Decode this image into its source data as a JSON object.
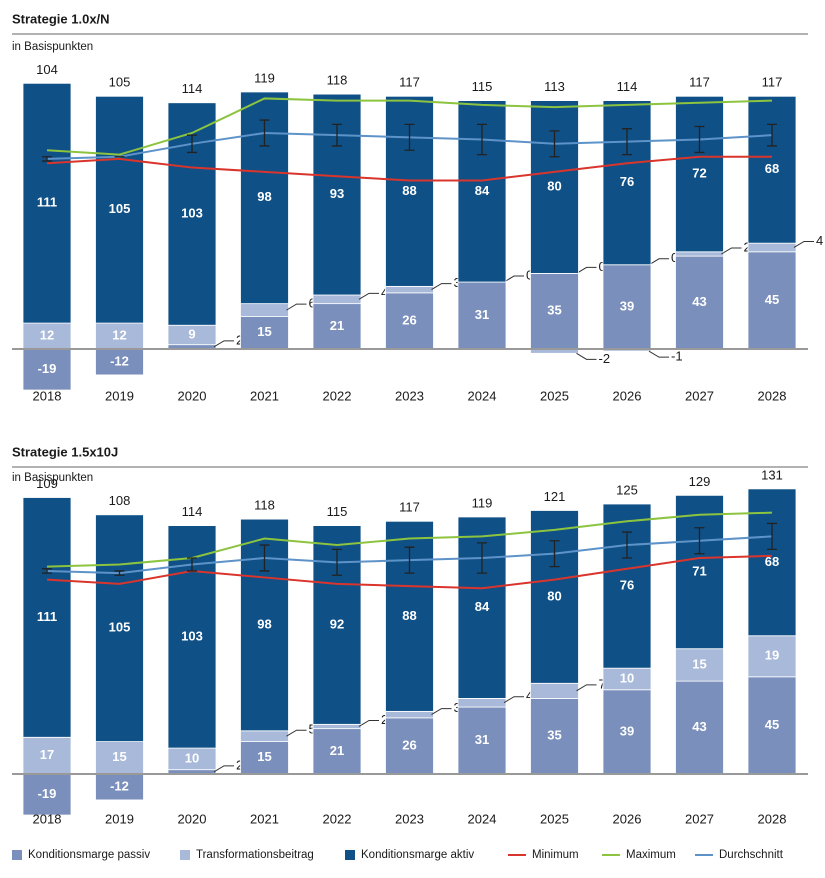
{
  "chart_data": [
    {
      "type": "bar",
      "title": "Strategie 1.0x/N",
      "subtitle": "in Basispunkten",
      "categories": [
        "2018",
        "2019",
        "2020",
        "2021",
        "2022",
        "2023",
        "2024",
        "2025",
        "2026",
        "2027",
        "2028"
      ],
      "totals": [
        104,
        105,
        114,
        119,
        118,
        117,
        115,
        113,
        114,
        117,
        117
      ],
      "series": [
        {
          "name": "Konditionsmarge passiv",
          "type": "bar",
          "color": "#7a8fbb",
          "values": [
            -19,
            -12,
            2,
            15,
            21,
            26,
            31,
            35,
            39,
            43,
            45
          ]
        },
        {
          "name": "Transformationsbeitrag",
          "type": "bar",
          "color": "#a8b9d9",
          "values": [
            12,
            12,
            9,
            6,
            4,
            3,
            0,
            0,
            0,
            2,
            4
          ],
          "values_below": [
            null,
            null,
            null,
            null,
            null,
            null,
            null,
            -2,
            -1,
            null,
            null
          ]
        },
        {
          "name": "Konditionsmarge aktiv",
          "type": "bar",
          "color": "#0f5087",
          "values": [
            111,
            105,
            103,
            98,
            93,
            88,
            84,
            80,
            76,
            72,
            68
          ]
        },
        {
          "name": "Minimum",
          "type": "line",
          "color": "#d9352c",
          "values": [
            86,
            88,
            84,
            82,
            80,
            78,
            78,
            82,
            86,
            89,
            89
          ]
        },
        {
          "name": "Maximum",
          "type": "line",
          "color": "#8cc33f",
          "values": [
            92,
            90,
            100,
            116,
            115,
            115,
            113,
            112,
            113,
            114,
            115
          ]
        },
        {
          "name": "Durchschnitt",
          "type": "line",
          "color": "#5d93c8",
          "values": [
            88,
            89,
            95,
            100,
            99,
            98,
            97,
            95,
            96,
            97,
            99
          ],
          "errors": [
            1,
            0,
            4,
            6,
            5,
            6,
            7,
            6,
            6,
            6,
            5
          ]
        }
      ]
    },
    {
      "type": "bar",
      "title": "Strategie 1.5x10J",
      "subtitle": "in Basispunkten",
      "categories": [
        "2018",
        "2019",
        "2020",
        "2021",
        "2022",
        "2023",
        "2024",
        "2025",
        "2026",
        "2027",
        "2028"
      ],
      "totals": [
        109,
        108,
        114,
        118,
        115,
        117,
        119,
        121,
        125,
        129,
        131
      ],
      "series": [
        {
          "type": "bar",
          "color": "#7a8fbb",
          "values": [
            -19,
            -12,
            2,
            15,
            21,
            26,
            31,
            35,
            39,
            43,
            45
          ]
        },
        {
          "type": "bar",
          "color": "#a8b9d9",
          "values": [
            17,
            15,
            10,
            5,
            2,
            3,
            4,
            7,
            10,
            15,
            19
          ]
        },
        {
          "type": "bar",
          "color": "#0f5087",
          "values": [
            111,
            105,
            103,
            98,
            92,
            88,
            84,
            80,
            76,
            71,
            68
          ]
        },
        {
          "type": "line",
          "color": "#d9352c",
          "values": [
            90,
            88,
            94,
            91,
            88,
            87,
            86,
            90,
            95,
            100,
            101
          ]
        },
        {
          "type": "line",
          "color": "#8cc33f",
          "values": [
            96,
            97,
            100,
            109,
            106,
            109,
            110,
            113,
            117,
            120,
            121
          ]
        },
        {
          "type": "line",
          "color": "#5d93c8",
          "values": [
            94,
            93,
            97,
            100,
            98,
            99,
            100,
            102,
            106,
            108,
            110
          ],
          "errors": [
            1,
            1,
            3,
            6,
            6,
            6,
            7,
            6,
            6,
            6,
            6
          ]
        }
      ]
    }
  ]
}
